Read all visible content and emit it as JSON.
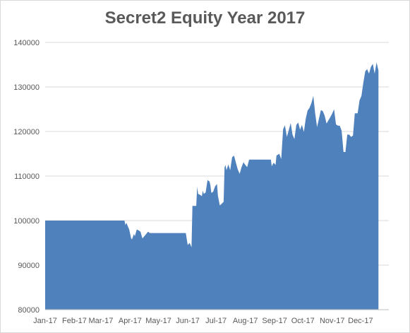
{
  "chart_data": {
    "type": "area",
    "title": "Secret2 Equity Year 2017",
    "xlabel": "",
    "ylabel": "",
    "ylim": [
      80000,
      140000
    ],
    "yticks": [
      "80000",
      "90000",
      "100000",
      "110000",
      "120000",
      "130000",
      "140000"
    ],
    "xticks": [
      "Jan-17",
      "Feb-17",
      "Mar-17",
      "Apr-17",
      "May-17",
      "Jun-17",
      "Jul-17",
      "Aug-17",
      "Sep-17",
      "Oct-17",
      "Nov-17",
      "Dec-17"
    ],
    "xlim_days": [
      1,
      365
    ],
    "grid": "horizontal",
    "legend": "none",
    "color": "#4f81bd",
    "series": [
      {
        "values": [
          [
            1,
            100000
          ],
          [
            85,
            100000
          ],
          [
            86,
            99000
          ],
          [
            87,
            99500
          ],
          [
            89,
            98500
          ],
          [
            90,
            98000
          ],
          [
            92,
            96000
          ],
          [
            93,
            95800
          ],
          [
            95,
            97000
          ],
          [
            96,
            96500
          ],
          [
            98,
            98000
          ],
          [
            100,
            97800
          ],
          [
            102,
            97500
          ],
          [
            104,
            96000
          ],
          [
            106,
            96500
          ],
          [
            108,
            97000
          ],
          [
            110,
            97500
          ],
          [
            112,
            97200
          ],
          [
            150,
            97200
          ],
          [
            152,
            94500
          ],
          [
            154,
            95000
          ],
          [
            156,
            94000
          ],
          [
            157,
            103300
          ],
          [
            161,
            103300
          ],
          [
            162,
            107600
          ],
          [
            163,
            106000
          ],
          [
            165,
            105800
          ],
          [
            167,
            105500
          ],
          [
            168,
            106700
          ],
          [
            169,
            106000
          ],
          [
            171,
            106300
          ],
          [
            173,
            109100
          ],
          [
            175,
            108800
          ],
          [
            176,
            108000
          ],
          [
            177,
            106200
          ],
          [
            179,
            106500
          ],
          [
            181,
            107700
          ],
          [
            183,
            108200
          ],
          [
            184,
            105600
          ],
          [
            186,
            103400
          ],
          [
            188,
            103800
          ],
          [
            190,
            104200
          ],
          [
            191,
            111900
          ],
          [
            192,
            112500
          ],
          [
            193,
            111300
          ],
          [
            195,
            112600
          ],
          [
            197,
            111300
          ],
          [
            199,
            114200
          ],
          [
            201,
            114600
          ],
          [
            203,
            113000
          ],
          [
            205,
            111500
          ],
          [
            207,
            110500
          ],
          [
            209,
            112000
          ],
          [
            211,
            113100
          ],
          [
            213,
            112500
          ],
          [
            215,
            112000
          ],
          [
            217,
            113700
          ],
          [
            240,
            113700
          ],
          [
            241,
            112200
          ],
          [
            243,
            113000
          ],
          [
            245,
            112500
          ],
          [
            246,
            114600
          ],
          [
            249,
            115000
          ],
          [
            251,
            113800
          ],
          [
            253,
            120500
          ],
          [
            255,
            121400
          ],
          [
            257,
            118800
          ],
          [
            259,
            120300
          ],
          [
            261,
            121900
          ],
          [
            263,
            119300
          ],
          [
            265,
            118300
          ],
          [
            267,
            121500
          ],
          [
            269,
            122000
          ],
          [
            271,
            120400
          ],
          [
            273,
            121500
          ],
          [
            275,
            119900
          ],
          [
            277,
            122900
          ],
          [
            279,
            124700
          ],
          [
            281,
            125300
          ],
          [
            283,
            126400
          ],
          [
            285,
            128000
          ],
          [
            287,
            124100
          ],
          [
            289,
            121000
          ],
          [
            291,
            122900
          ],
          [
            293,
            124800
          ],
          [
            295,
            124600
          ],
          [
            297,
            123600
          ],
          [
            299,
            121800
          ],
          [
            301,
            122500
          ],
          [
            303,
            123200
          ],
          [
            305,
            124000
          ],
          [
            307,
            125000
          ],
          [
            309,
            121600
          ],
          [
            311,
            121300
          ],
          [
            313,
            121300
          ],
          [
            315,
            120200
          ],
          [
            317,
            115400
          ],
          [
            319,
            115400
          ],
          [
            321,
            119300
          ],
          [
            323,
            119300
          ],
          [
            325,
            118800
          ],
          [
            327,
            119100
          ],
          [
            329,
            124100
          ],
          [
            332,
            124100
          ],
          [
            334,
            127000
          ],
          [
            336,
            128000
          ],
          [
            338,
            131000
          ],
          [
            340,
            133500
          ],
          [
            342,
            134000
          ],
          [
            344,
            133000
          ],
          [
            346,
            134500
          ],
          [
            348,
            135200
          ],
          [
            350,
            133000
          ],
          [
            352,
            135500
          ],
          [
            354,
            133700
          ]
        ]
      }
    ]
  }
}
